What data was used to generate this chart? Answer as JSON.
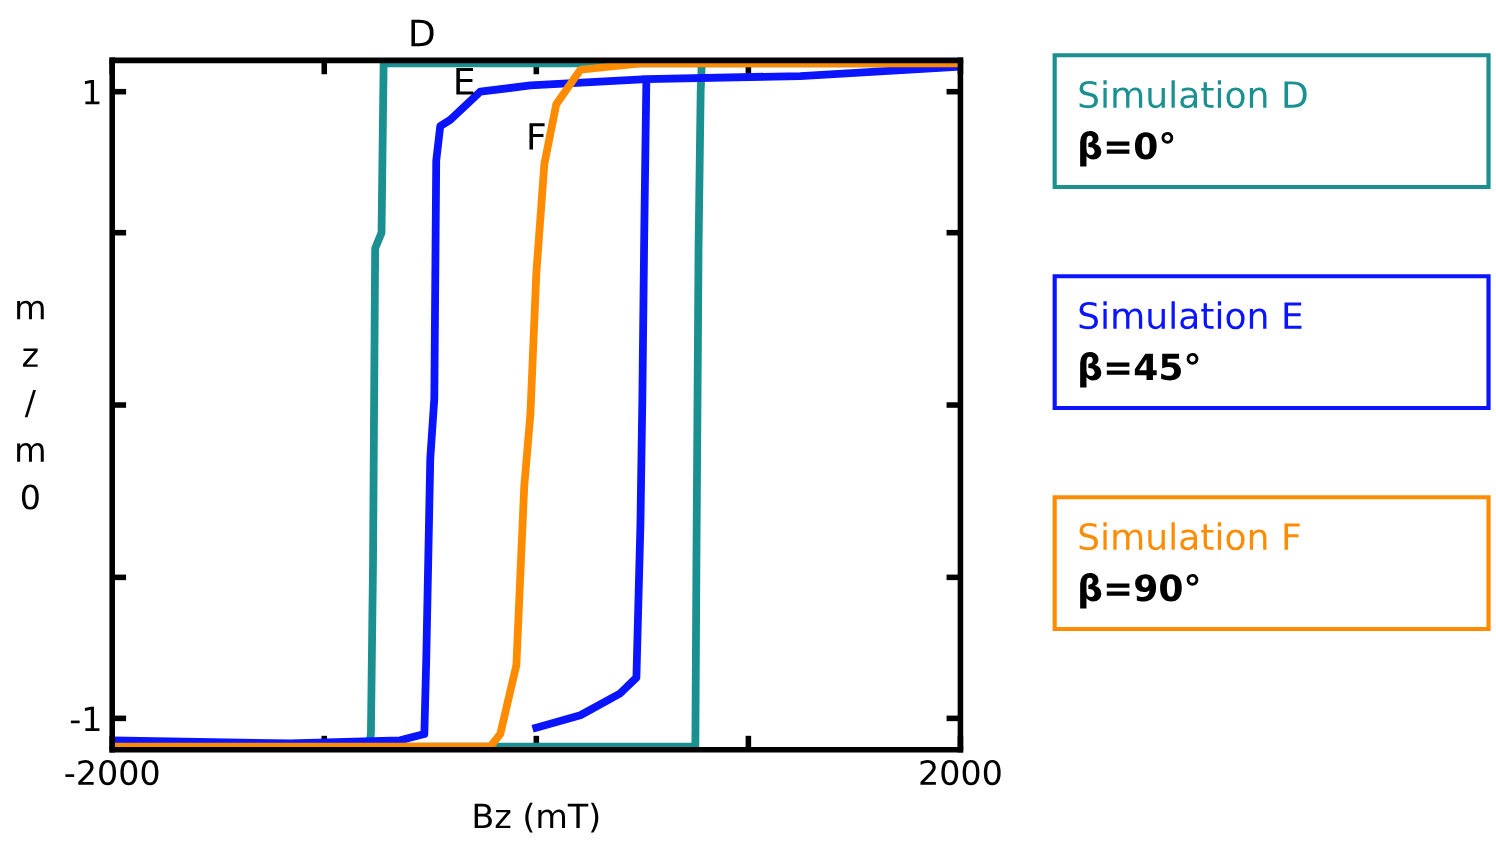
{
  "chart_data": {
    "type": "line",
    "xlabel": "Bz (mT)",
    "ylabel": "mz/m0",
    "xlim": [
      -2000,
      2000
    ],
    "xticks": [
      -2000,
      {
        "value": -1000,
        "label": null
      },
      {
        "value": 0,
        "label": null
      },
      {
        "value": 1000,
        "label": null
      },
      2000
    ],
    "ylim": [
      -1.1,
      1.1
    ],
    "yticks": [
      -1,
      {
        "value": -0.55,
        "label": null
      },
      {
        "value": 0,
        "label": null
      },
      {
        "value": 0.55,
        "label": null
      },
      1
    ],
    "grid": false,
    "legend": "right",
    "marker": "none",
    "line_style": "solid",
    "series": [
      {
        "name": "Simulation D",
        "color": "#1a9090",
        "x": [
          2000,
          -720,
          -730,
          -760,
          -770,
          -780,
          -790,
          -2000,
          null,
          -790,
          750,
          755,
          765,
          775,
          780,
          2000
        ],
        "values": [
          1.09,
          1.09,
          0.55,
          0.5,
          -0.5,
          -1.05,
          -1.09,
          -1.09,
          null,
          -1.09,
          -1.09,
          -0.5,
          0.5,
          1.0,
          1.09,
          1.09
        ]
      },
      {
        "name": "Simulation E",
        "color": "#0a14ff",
        "x": [
          2000,
          1245,
          519,
          -28,
          -264,
          -406,
          -453,
          -472,
          -481,
          -500,
          -519,
          -528,
          -642,
          -1160,
          -2000,
          null,
          0,
          208,
          396,
          472,
          491,
          500,
          509,
          519
        ],
        "values": [
          1.08,
          1.05,
          1.04,
          1.02,
          1.0,
          0.91,
          0.89,
          0.78,
          0.02,
          -0.17,
          -0.81,
          -1.05,
          -1.07,
          -1.08,
          -1.07,
          null,
          -1.03,
          -0.99,
          -0.92,
          -0.87,
          -0.38,
          0.02,
          0.55,
          1.04
        ]
      },
      {
        "name": "Simulation F",
        "color": "#ff8c00",
        "x": [
          -2000,
          -217,
          -170,
          -94,
          -57,
          -28,
          0,
          38,
          94,
          208,
          491,
          2000
        ],
        "values": [
          -1.09,
          -1.09,
          -1.05,
          -0.83,
          -0.26,
          -0.03,
          0.42,
          0.77,
          0.96,
          1.07,
          1.09,
          1.09
        ]
      }
    ],
    "annotations": [
      "D",
      "E",
      "F",
      "β=0°",
      "β=45°",
      "β=90°"
    ]
  }
}
